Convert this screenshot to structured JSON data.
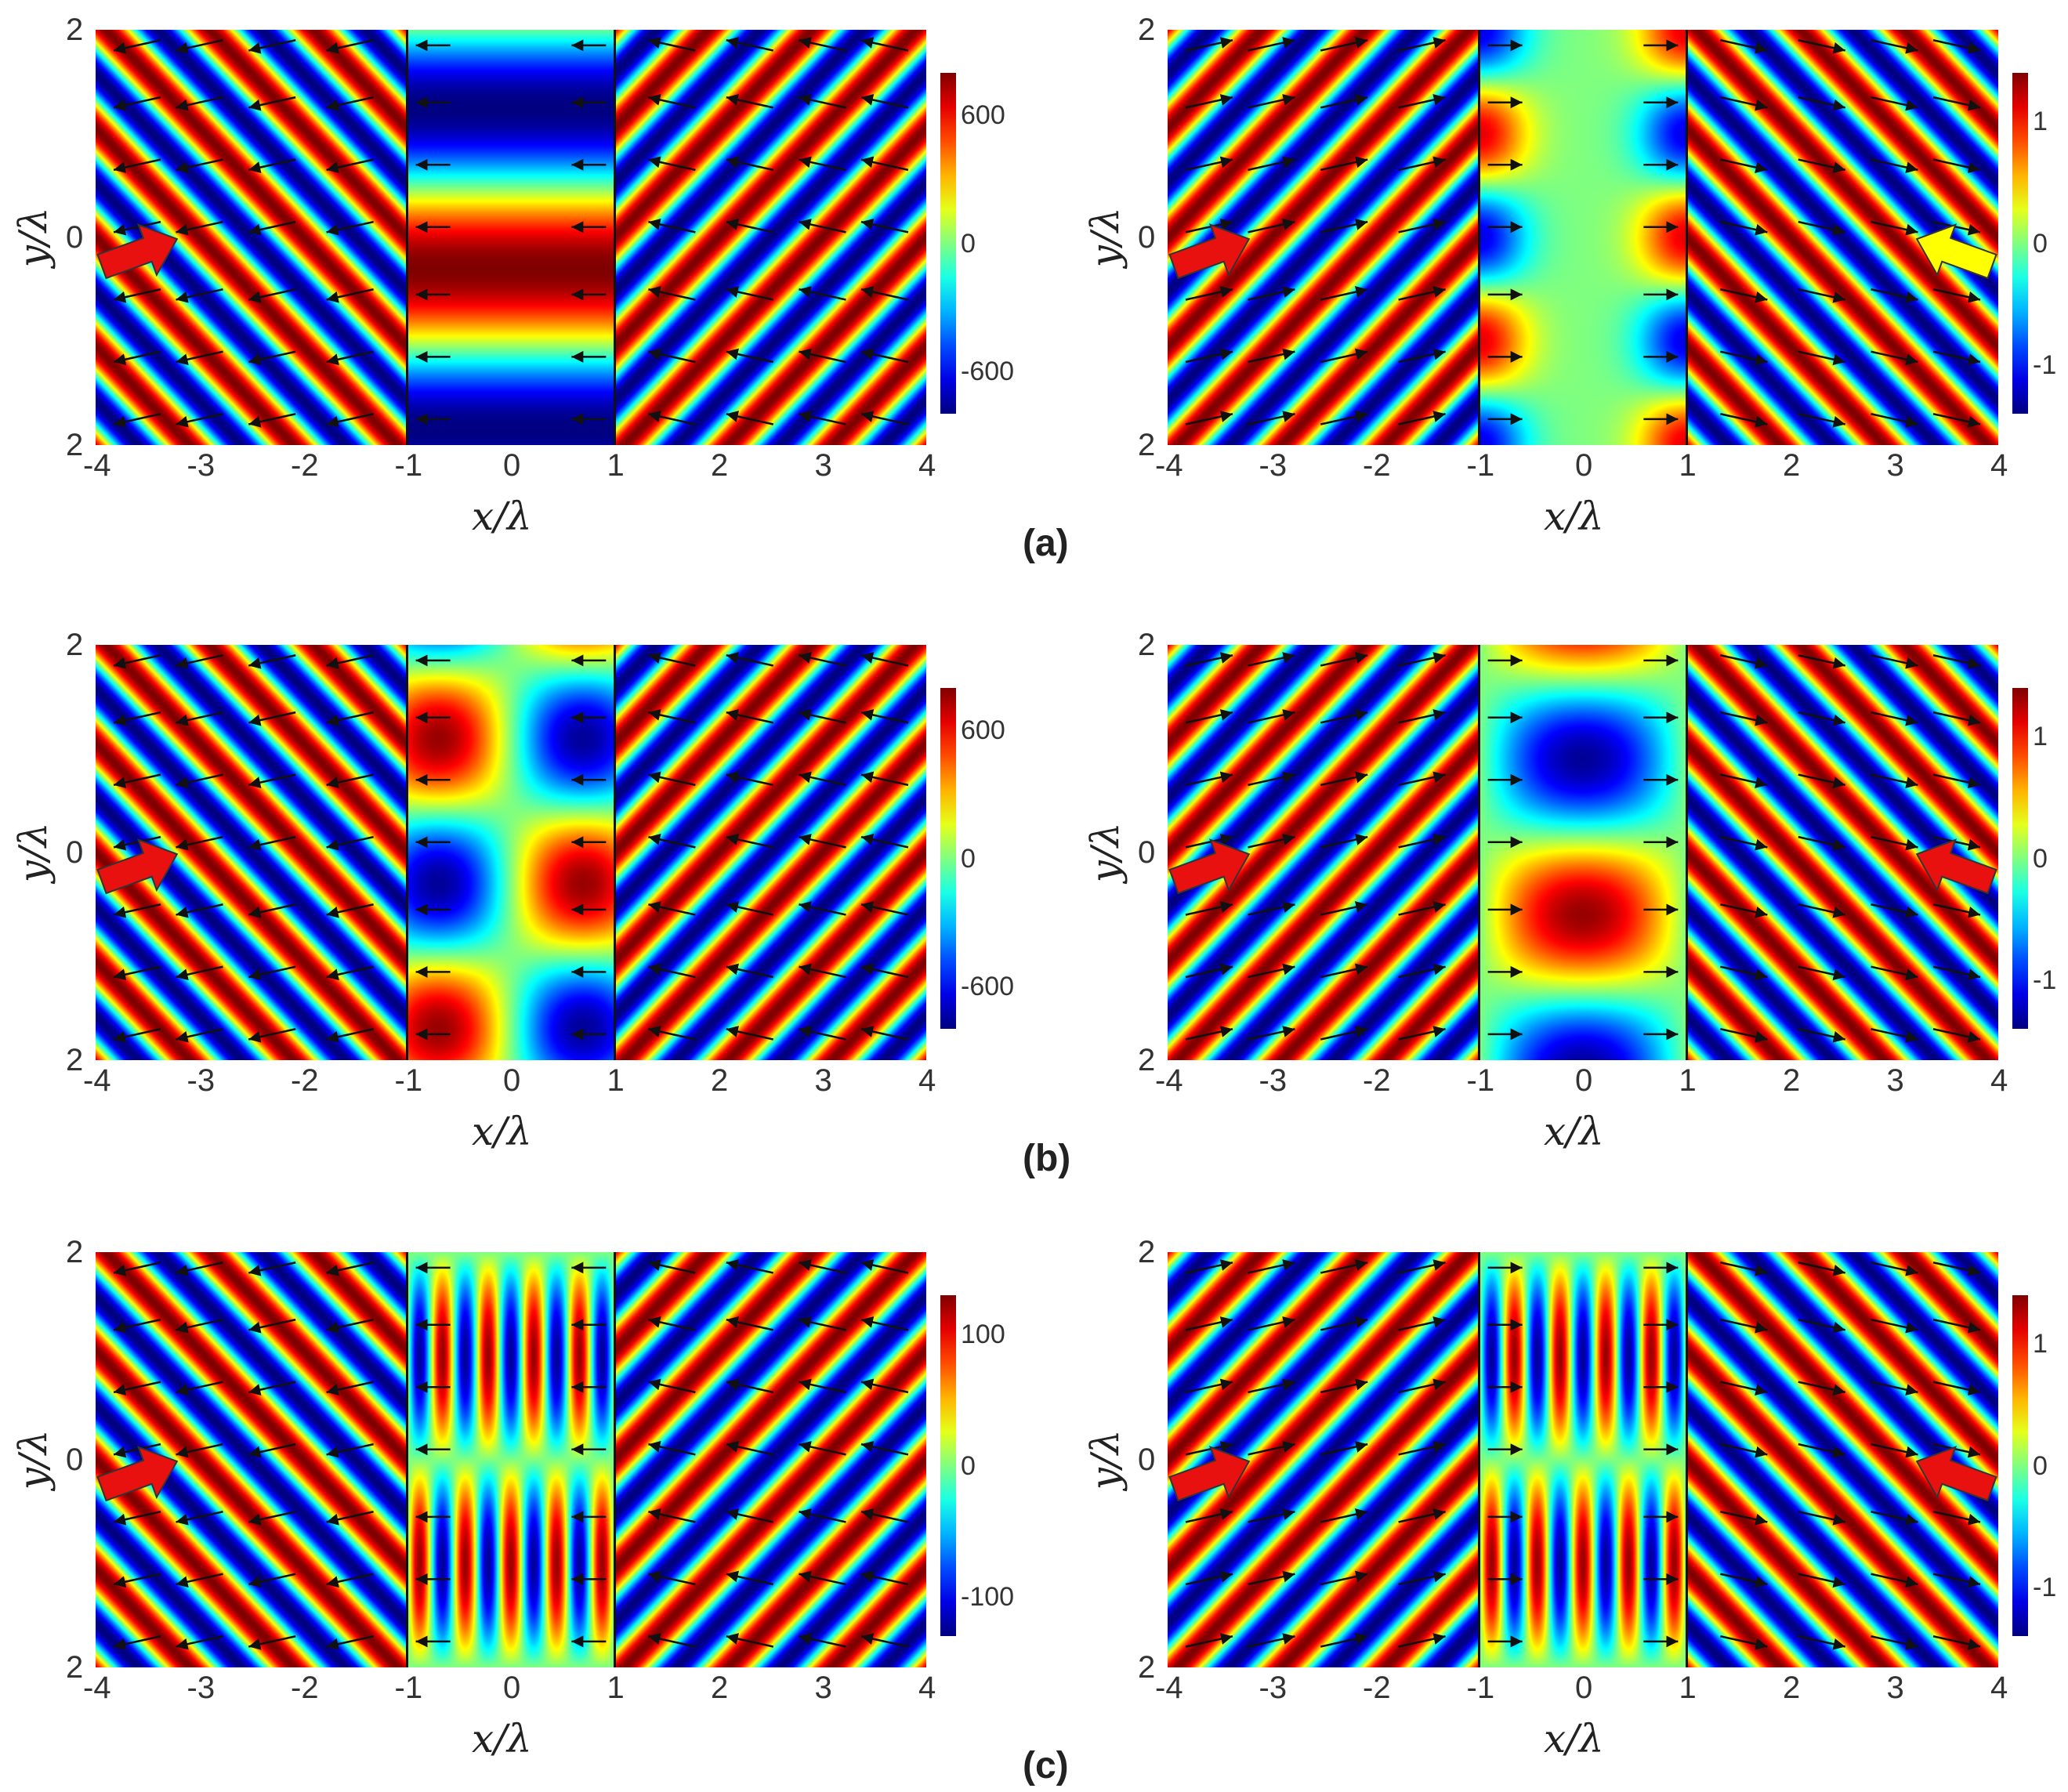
{
  "panel_labels": [
    "(a)",
    "(b)",
    "(c)"
  ],
  "chart_data": [
    {
      "type": "heatmap",
      "row": "(a)",
      "side": "left",
      "xlabel": "x/λ",
      "ylabel": "y/λ",
      "x_ticks": [
        "-4",
        "-3",
        "-2",
        "-1",
        "0",
        "1",
        "2",
        "3",
        "4"
      ],
      "y_ticks": [
        "2",
        "0",
        "2"
      ],
      "xlim": [
        -4,
        4
      ],
      "ylim": [
        -2,
        2
      ],
      "slab_edges": [
        -1,
        1
      ],
      "colorbar": {
        "ticks": [
          "600",
          "0",
          "-600"
        ],
        "values": [
          600,
          0,
          -600
        ],
        "range": [
          -800,
          800
        ]
      },
      "incident_arrows": [
        {
          "color": "#e8110f",
          "side": "left"
        }
      ],
      "pattern": {
        "outer_kx": 1,
        "outer_ky": 1.9,
        "inner_kx": 0,
        "inner_ky": 2.5,
        "inner_peak": [
          0,
          -0.3
        ],
        "arrow_dir": "left"
      }
    },
    {
      "type": "heatmap",
      "row": "(a)",
      "side": "right",
      "xlabel": "x/λ",
      "ylabel": "y/λ",
      "x_ticks": [
        "-4",
        "-3",
        "-2",
        "-1",
        "0",
        "1",
        "2",
        "3",
        "4"
      ],
      "y_ticks": [
        "2",
        "0",
        "2"
      ],
      "xlim": [
        -4,
        4
      ],
      "ylim": [
        -2,
        2
      ],
      "slab_edges": [
        -1,
        1
      ],
      "colorbar": {
        "ticks": [
          "1",
          "0",
          "-1"
        ],
        "values": [
          1,
          0,
          -1
        ],
        "range": [
          -1.4,
          1.4
        ]
      },
      "incident_arrows": [
        {
          "color": "#e8110f",
          "side": "left"
        },
        {
          "color": "#ffff00",
          "side": "right"
        }
      ],
      "pattern": {
        "outer_kx": 1,
        "outer_ky": -1.9,
        "inner_mode": "edge-antisymmetric",
        "arrow_dir": "right"
      }
    },
    {
      "type": "heatmap",
      "row": "(b)",
      "side": "left",
      "xlabel": "x/λ",
      "ylabel": "y/λ",
      "x_ticks": [
        "-4",
        "-3",
        "-2",
        "-1",
        "0",
        "1",
        "2",
        "3",
        "4"
      ],
      "y_ticks": [
        "2",
        "0",
        "2"
      ],
      "xlim": [
        -4,
        4
      ],
      "ylim": [
        -2,
        2
      ],
      "slab_edges": [
        -1,
        1
      ],
      "colorbar": {
        "ticks": [
          "600",
          "0",
          "-600"
        ],
        "values": [
          600,
          0,
          -600
        ],
        "range": [
          -800,
          800
        ]
      },
      "incident_arrows": [
        {
          "color": "#e8110f",
          "side": "left"
        }
      ],
      "pattern": {
        "outer_kx": 1,
        "outer_ky": 1.9,
        "inner_mode": "checker",
        "arrow_dir": "left"
      }
    },
    {
      "type": "heatmap",
      "row": "(b)",
      "side": "right",
      "xlabel": "x/λ",
      "ylabel": "y/λ",
      "x_ticks": [
        "-4",
        "-3",
        "-2",
        "-1",
        "0",
        "1",
        "2",
        "3",
        "4"
      ],
      "y_ticks": [
        "2",
        "0",
        "2"
      ],
      "xlim": [
        -4,
        4
      ],
      "ylim": [
        -2,
        2
      ],
      "slab_edges": [
        -1,
        1
      ],
      "colorbar": {
        "ticks": [
          "1",
          "0",
          "-1"
        ],
        "values": [
          1,
          0,
          -1
        ],
        "range": [
          -1.4,
          1.4
        ]
      },
      "incident_arrows": [
        {
          "color": "#e8110f",
          "side": "left"
        },
        {
          "color": "#e8110f",
          "side": "right"
        }
      ],
      "pattern": {
        "outer_kx": 1,
        "outer_ky": -1.9,
        "inner_mode": "center-column",
        "arrow_dir": "right"
      }
    },
    {
      "type": "heatmap",
      "row": "(c)",
      "side": "left",
      "xlabel": "x/λ",
      "ylabel": "y/λ",
      "x_ticks": [
        "-4",
        "-3",
        "-2",
        "-1",
        "0",
        "1",
        "2",
        "3",
        "4"
      ],
      "y_ticks": [
        "2",
        "0",
        "2"
      ],
      "xlim": [
        -4,
        4
      ],
      "ylim": [
        -2,
        2
      ],
      "slab_edges": [
        -1,
        1
      ],
      "colorbar": {
        "ticks": [
          "100",
          "0",
          "-100"
        ],
        "values": [
          100,
          0,
          -100
        ],
        "range": [
          -130,
          130
        ]
      },
      "incident_arrows": [
        {
          "color": "#e8110f",
          "side": "left"
        }
      ],
      "pattern": {
        "outer_kx": 1,
        "outer_ky": 1.9,
        "inner_mode": "fine-stripes",
        "arrow_dir": "left"
      }
    },
    {
      "type": "heatmap",
      "row": "(c)",
      "side": "right",
      "xlabel": "x/λ",
      "ylabel": "y/λ",
      "x_ticks": [
        "-4",
        "-3",
        "-2",
        "-1",
        "0",
        "1",
        "2",
        "3",
        "4"
      ],
      "y_ticks": [
        "2",
        "0",
        "2"
      ],
      "xlim": [
        -4,
        4
      ],
      "ylim": [
        -2,
        2
      ],
      "slab_edges": [
        -1,
        1
      ],
      "colorbar": {
        "ticks": [
          "1",
          "-1",
          "0"
        ],
        "values": [
          1,
          -1,
          0
        ],
        "range": [
          -1.4,
          1.4
        ]
      },
      "incident_arrows": [
        {
          "color": "#e8110f",
          "side": "left"
        },
        {
          "color": "#e8110f",
          "side": "right"
        }
      ],
      "pattern": {
        "outer_kx": 1,
        "outer_ky": -1.9,
        "inner_mode": "fine-stripes",
        "arrow_dir": "right"
      }
    }
  ]
}
